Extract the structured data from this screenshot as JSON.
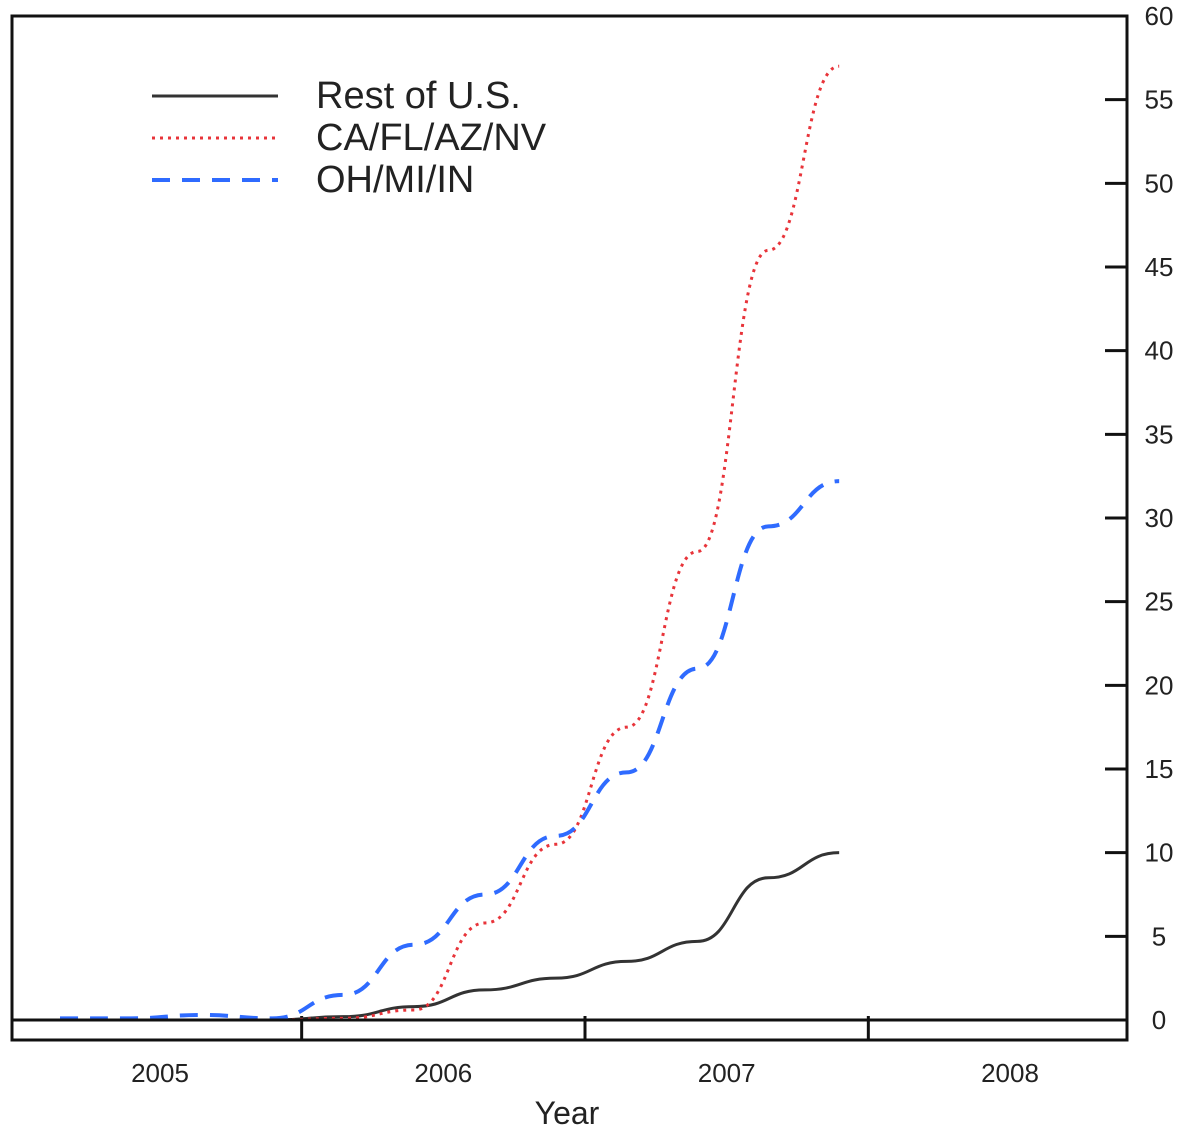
{
  "chart_data": {
    "type": "line",
    "xlabel": "Year",
    "ylabel": "",
    "title": "",
    "x_ticks": [
      "2005",
      "2006",
      "2007",
      "2008"
    ],
    "y_ticks": [
      "0",
      "5",
      "10",
      "15",
      "20",
      "25",
      "30",
      "35",
      "40",
      "45",
      "50",
      "55",
      "60"
    ],
    "ylim": [
      0,
      60
    ],
    "y_axis_side": "right",
    "legend_position": "top-left",
    "grid": false,
    "series": [
      {
        "name": "Rest of U.S.",
        "color": "#333333",
        "style": "solid",
        "points": [
          [
            "2005Q1",
            0.0
          ],
          [
            "2005Q2",
            0.0
          ],
          [
            "2005Q3",
            0.0
          ],
          [
            "2005Q4",
            0.0
          ],
          [
            "2006Q1",
            0.2
          ],
          [
            "2006Q2",
            0.8
          ],
          [
            "2006Q3",
            1.8
          ],
          [
            "2006Q4",
            2.5
          ],
          [
            "2007Q1",
            3.5
          ],
          [
            "2007Q2",
            4.7
          ],
          [
            "2007Q3",
            8.5
          ],
          [
            "2007Q4",
            10.0
          ]
        ]
      },
      {
        "name": "CA/FL/AZ/NV",
        "color": "#e8343a",
        "style": "dotted",
        "points": [
          [
            "2005Q1",
            0.0
          ],
          [
            "2005Q2",
            0.0
          ],
          [
            "2005Q3",
            0.0
          ],
          [
            "2005Q4",
            0.0
          ],
          [
            "2006Q1",
            0.1
          ],
          [
            "2006Q2",
            0.6
          ],
          [
            "2006Q3",
            5.8
          ],
          [
            "2006Q4",
            10.5
          ],
          [
            "2007Q1",
            17.5
          ],
          [
            "2007Q2",
            28.0
          ],
          [
            "2007Q3",
            46.0
          ],
          [
            "2007Q4",
            57.0
          ]
        ]
      },
      {
        "name": "OH/MI/IN",
        "color": "#2f6bff",
        "style": "dashed",
        "points": [
          [
            "2005Q1",
            0.1
          ],
          [
            "2005Q2",
            0.1
          ],
          [
            "2005Q3",
            0.3
          ],
          [
            "2005Q4",
            0.1
          ],
          [
            "2006Q1",
            1.5
          ],
          [
            "2006Q2",
            4.5
          ],
          [
            "2006Q3",
            7.5
          ],
          [
            "2006Q4",
            11.0
          ],
          [
            "2007Q1",
            14.8
          ],
          [
            "2007Q2",
            21.0
          ],
          [
            "2007Q3",
            29.5
          ],
          [
            "2007Q4",
            32.2
          ]
        ]
      }
    ]
  }
}
